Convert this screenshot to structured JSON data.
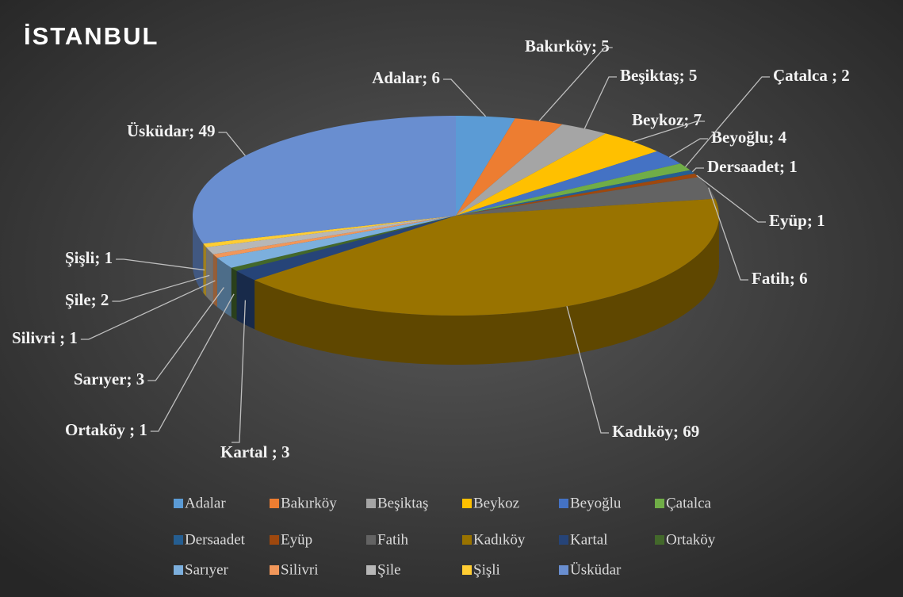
{
  "chart_data": {
    "type": "pie3d",
    "title": "İSTANBUL",
    "categories": [
      "Adalar",
      "Bakırköy",
      "Beşiktaş",
      "Beykoz",
      "Beyoğlu",
      "Çatalca",
      "Dersaadet",
      "Eyüp",
      "Fatih",
      "Kadıköy",
      "Kartal",
      "Ortaköy",
      "Sarıyer",
      "Silivri",
      "Şile",
      "Şişli",
      "Üsküdar"
    ],
    "values": [
      6,
      5,
      5,
      7,
      4,
      2,
      1,
      1,
      6,
      69,
      3,
      1,
      3,
      1,
      2,
      1,
      49
    ],
    "value_labels": [
      "Adalar; 6",
      "Bakırköy; 5",
      "Beşiktaş; 5",
      "Beykoz; 7",
      "Beyoğlu; 4",
      "Çatalca   ; 2",
      "Dersaadet; 1",
      "Eyüp; 1",
      "Fatih; 6",
      "Kadıköy; 69",
      "Kartal   ; 3",
      "Ortaköy   ; 1",
      "Sarıyer; 3",
      "Silivri ; 1",
      "Şile; 2",
      "Şişli; 1",
      "Üsküdar; 49"
    ],
    "colors": [
      "#5b9bd5",
      "#ed7d31",
      "#a5a5a5",
      "#ffc000",
      "#4472c4",
      "#70ad47",
      "#255e91",
      "#9e480e",
      "#636363",
      "#997300",
      "#264478",
      "#43682b",
      "#7cafdd",
      "#f1975a",
      "#b7b7b7",
      "#ffcd33",
      "#698ed0"
    ],
    "legend": "bottom"
  }
}
